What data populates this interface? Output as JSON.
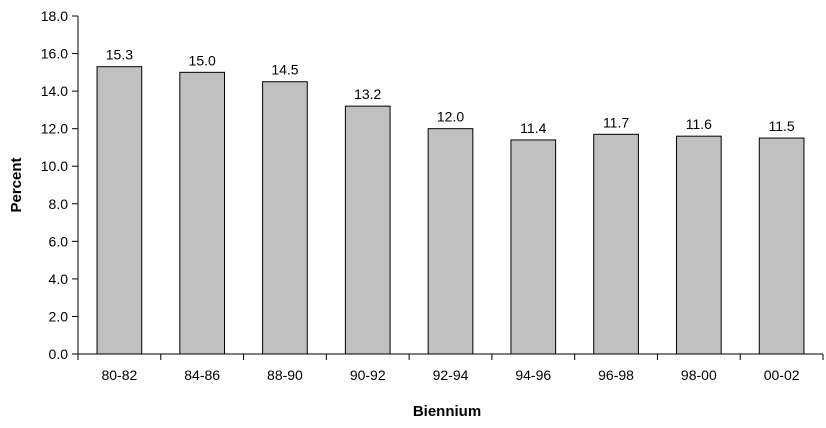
{
  "chart_data": {
    "type": "bar",
    "title": "",
    "xlabel": "Biennium",
    "ylabel": "Percent",
    "categories": [
      "80-82",
      "84-86",
      "88-90",
      "90-92",
      "92-94",
      "94-96",
      "96-98",
      "98-00",
      "00-02"
    ],
    "values": [
      15.3,
      15.0,
      14.5,
      13.2,
      12.0,
      11.4,
      11.7,
      11.6,
      11.5
    ],
    "data_labels": [
      "15.3",
      "15.0",
      "14.5",
      "13.2",
      "12.0",
      "11.4",
      "11.7",
      "11.6",
      "11.5"
    ],
    "ylim": [
      0,
      18
    ],
    "yticks": [
      "0.0",
      "2.0",
      "4.0",
      "6.0",
      "8.0",
      "10.0",
      "12.0",
      "14.0",
      "16.0",
      "18.0"
    ],
    "grid": false,
    "legend": "none",
    "colors": {
      "bar_fill": "#c0c0c0",
      "bar_stroke": "#000000",
      "axis": "#000000"
    }
  }
}
